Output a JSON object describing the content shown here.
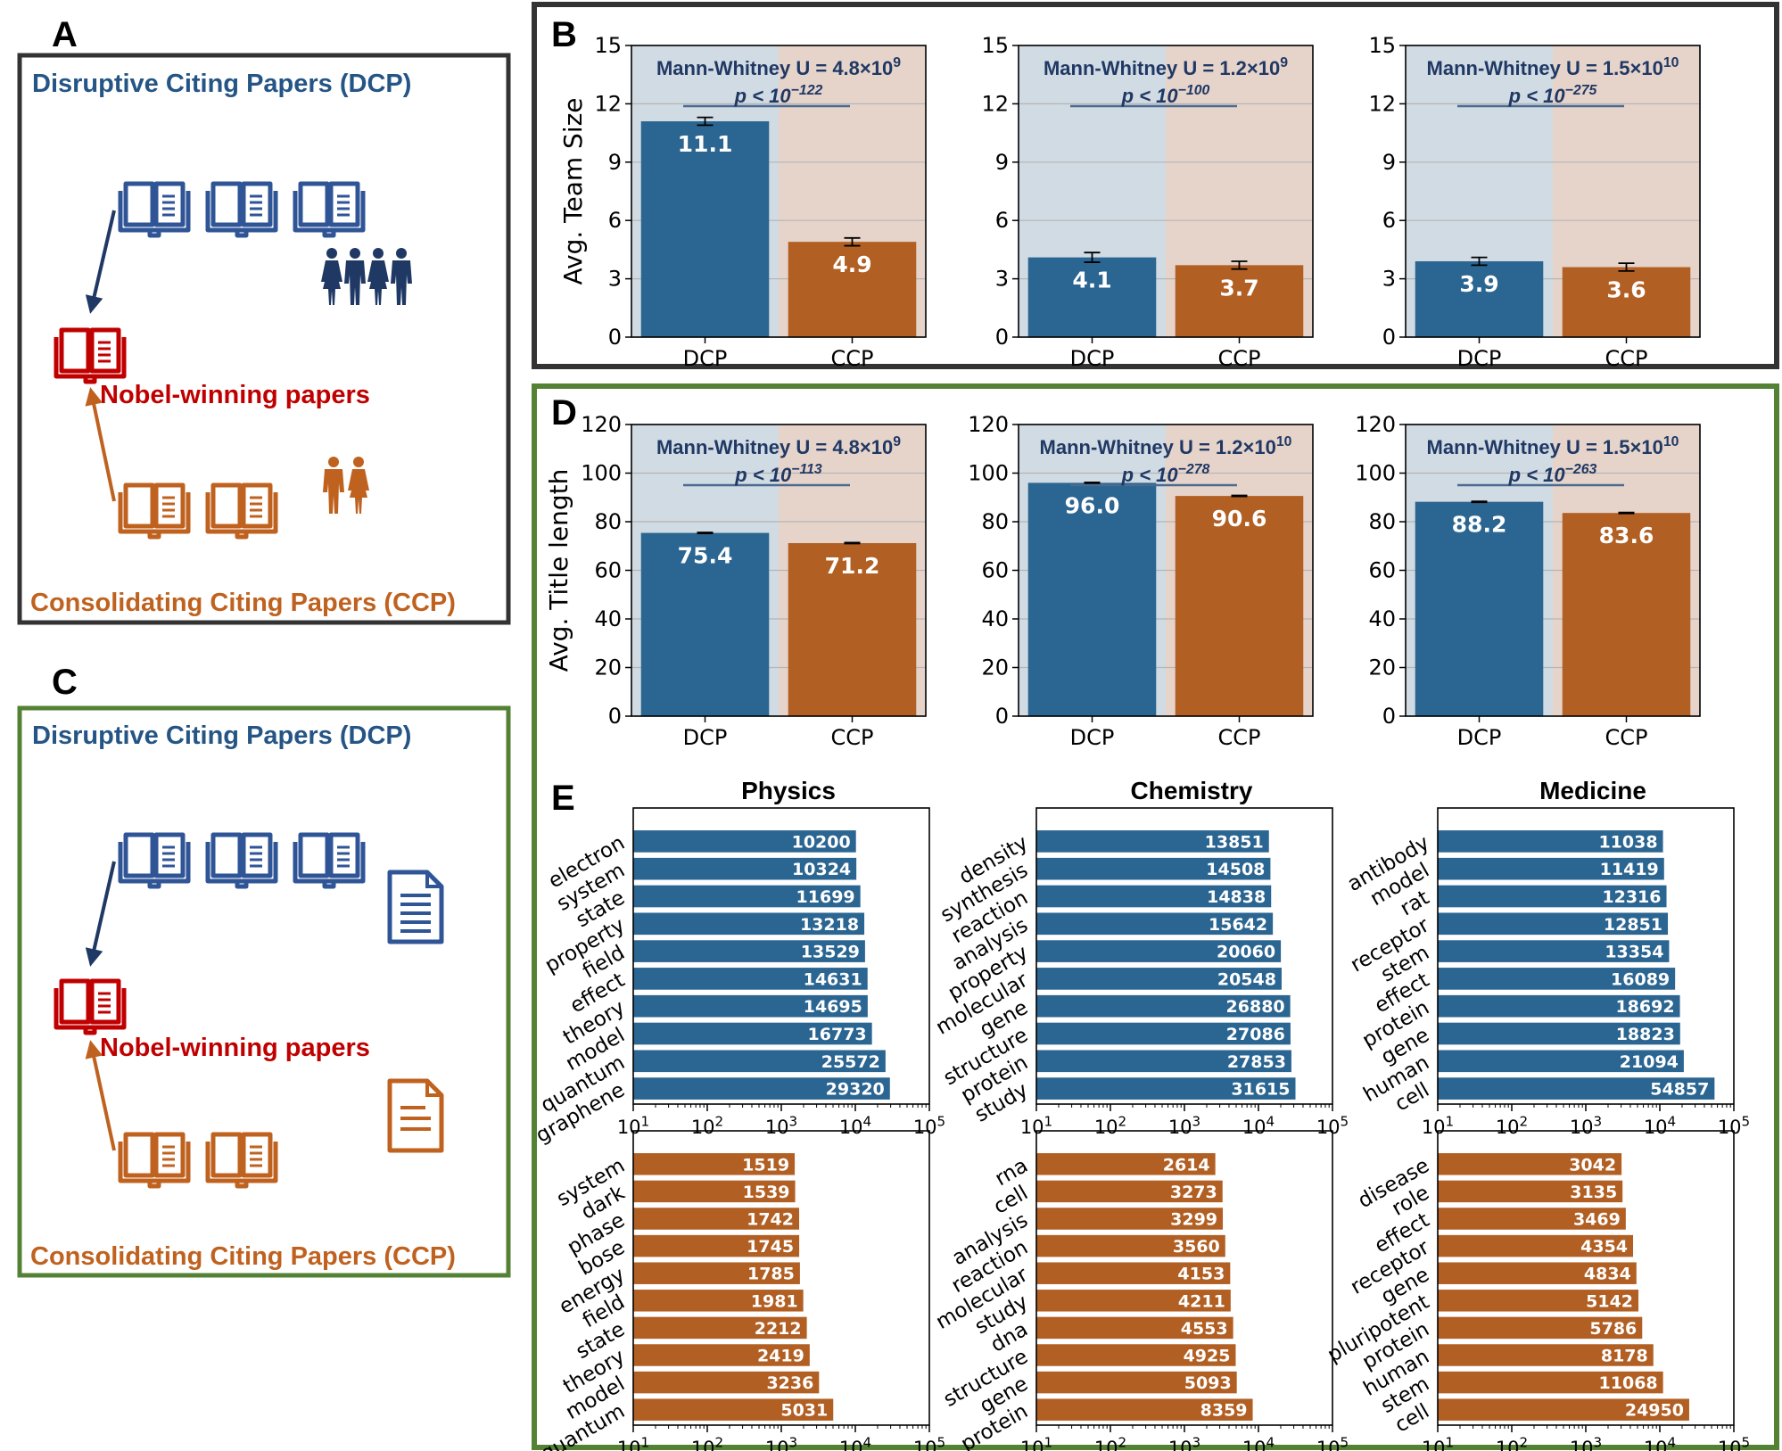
{
  "colors": {
    "dcp": "#2b6591",
    "ccp": "#b25f23",
    "dcp_bg": "#d1dbe3",
    "ccp_bg": "#e6d4cb",
    "dcp_text": "#255585",
    "ccp_text": "#c0621f",
    "red": "#c00000",
    "frame_dark": "#333333",
    "frame_green": "#548235",
    "stat_text": "#203864"
  },
  "panel_a": {
    "letter": "A",
    "dcp_title": "Disruptive Citing Papers (DCP)",
    "nobel_label": "Nobel-winning papers",
    "ccp_title": "Consolidating Citing Papers (CCP)",
    "icons": [
      "open-book-icon",
      "people-group-icon",
      "couple-icon"
    ]
  },
  "panel_c": {
    "letter": "C",
    "dcp_title": "Disruptive Citing Papers (DCP)",
    "nobel_label": "Nobel-winning papers",
    "ccp_title": "Consolidating Citing Papers (CCP)",
    "icons": [
      "open-book-icon",
      "long-document-icon",
      "short-document-icon"
    ]
  },
  "letters": {
    "b": "B",
    "d": "D",
    "e": "E"
  },
  "chart_data": [
    {
      "id": "B",
      "type": "bar",
      "ylabel": "Avg. Team Size",
      "ylim": [
        0,
        15
      ],
      "yticks": [
        0,
        3,
        6,
        9,
        12,
        15
      ],
      "grid": true,
      "categories": [
        "DCP",
        "CCP"
      ],
      "subplots": [
        {
          "values": [
            11.1,
            4.9
          ],
          "labels": [
            "11.1",
            "4.9"
          ],
          "errors": [
            0.2,
            0.2
          ],
          "stat_u_base": "Mann-Whitney U = 4.8×10",
          "stat_u_exp": "9",
          "stat_p_base": "p < 10",
          "stat_p_exp": "−122"
        },
        {
          "values": [
            4.1,
            3.7
          ],
          "labels": [
            "4.1",
            "3.7"
          ],
          "errors": [
            0.25,
            0.2
          ],
          "stat_u_base": "Mann-Whitney U = 1.2×10",
          "stat_u_exp": "9",
          "stat_p_base": "p < 10",
          "stat_p_exp": "−100"
        },
        {
          "values": [
            3.9,
            3.6
          ],
          "labels": [
            "3.9",
            "3.6"
          ],
          "errors": [
            0.2,
            0.2
          ],
          "stat_u_base": "Mann-Whitney U = 1.5×10",
          "stat_u_exp": "10",
          "stat_p_base": "p < 10",
          "stat_p_exp": "−275"
        }
      ]
    },
    {
      "id": "D",
      "type": "bar",
      "ylabel": "Avg. Title length",
      "ylim": [
        0,
        120
      ],
      "yticks": [
        0,
        20,
        40,
        60,
        80,
        100,
        120
      ],
      "grid": true,
      "categories": [
        "DCP",
        "CCP"
      ],
      "subplots": [
        {
          "values": [
            75.4,
            71.2
          ],
          "labels": [
            "75.4",
            "71.2"
          ],
          "errors": [
            0.2,
            0.2
          ],
          "stat_u_base": "Mann-Whitney U = 4.8×10",
          "stat_u_exp": "9",
          "stat_p_base": "p < 10",
          "stat_p_exp": "−113"
        },
        {
          "values": [
            96.0,
            90.6
          ],
          "labels": [
            "96.0",
            "90.6"
          ],
          "errors": [
            0.2,
            0.2
          ],
          "stat_u_base": "Mann-Whitney U = 1.2×10",
          "stat_u_exp": "10",
          "stat_p_base": "p < 10",
          "stat_p_exp": "−278"
        },
        {
          "values": [
            88.2,
            83.6
          ],
          "labels": [
            "88.2",
            "83.6"
          ],
          "errors": [
            0.2,
            0.2
          ],
          "stat_u_base": "Mann-Whitney U = 1.5×10",
          "stat_u_exp": "10",
          "stat_p_base": "p < 10",
          "stat_p_exp": "−263"
        }
      ]
    },
    {
      "id": "E",
      "type": "bar",
      "orientation": "horizontal",
      "x_scale": "log",
      "xlim": [
        10,
        100000
      ],
      "xticks": [
        "10",
        "10",
        "10",
        "10",
        "10"
      ],
      "xtick_exps": [
        "1",
        "2",
        "3",
        "4",
        "5"
      ],
      "columns": [
        {
          "title": "Physics",
          "dcp": {
            "terms": [
              "electron",
              "system",
              "state",
              "property",
              "field",
              "effect",
              "theory",
              "model",
              "quantum",
              "graphene"
            ],
            "values": [
              10200,
              10324,
              11699,
              13218,
              13529,
              14631,
              14695,
              16773,
              25572,
              29320
            ]
          },
          "ccp": {
            "terms": [
              "system",
              "dark",
              "phase",
              "bose",
              "energy",
              "field",
              "state",
              "theory",
              "model",
              "quantum"
            ],
            "values": [
              1519,
              1539,
              1742,
              1745,
              1785,
              1981,
              2212,
              2419,
              3236,
              5031
            ]
          }
        },
        {
          "title": "Chemistry",
          "dcp": {
            "terms": [
              "density",
              "synthesis",
              "reaction",
              "analysis",
              "property",
              "molecular",
              "gene",
              "structure",
              "protein",
              "study"
            ],
            "values": [
              13851,
              14508,
              14838,
              15642,
              20060,
              20548,
              26880,
              27086,
              27853,
              31615
            ]
          },
          "ccp": {
            "terms": [
              "rna",
              "cell",
              "analysis",
              "reaction",
              "molecular",
              "study",
              "dna",
              "structure",
              "gene",
              "protein"
            ],
            "values": [
              2614,
              3273,
              3299,
              3560,
              4153,
              4211,
              4553,
              4925,
              5093,
              8359
            ]
          }
        },
        {
          "title": "Medicine",
          "dcp": {
            "terms": [
              "antibody",
              "model",
              "rat",
              "receptor",
              "stem",
              "effect",
              "protein",
              "gene",
              "human",
              "cell"
            ],
            "values": [
              11038,
              11419,
              12316,
              12851,
              13354,
              16089,
              18692,
              18823,
              21094,
              54857
            ]
          },
          "ccp": {
            "terms": [
              "disease",
              "role",
              "effect",
              "receptor",
              "gene",
              "pluripotent",
              "protein",
              "human",
              "stem",
              "cell"
            ],
            "values": [
              3042,
              3135,
              3469,
              4354,
              4834,
              5142,
              5786,
              8178,
              11068,
              24950
            ]
          }
        }
      ]
    }
  ]
}
